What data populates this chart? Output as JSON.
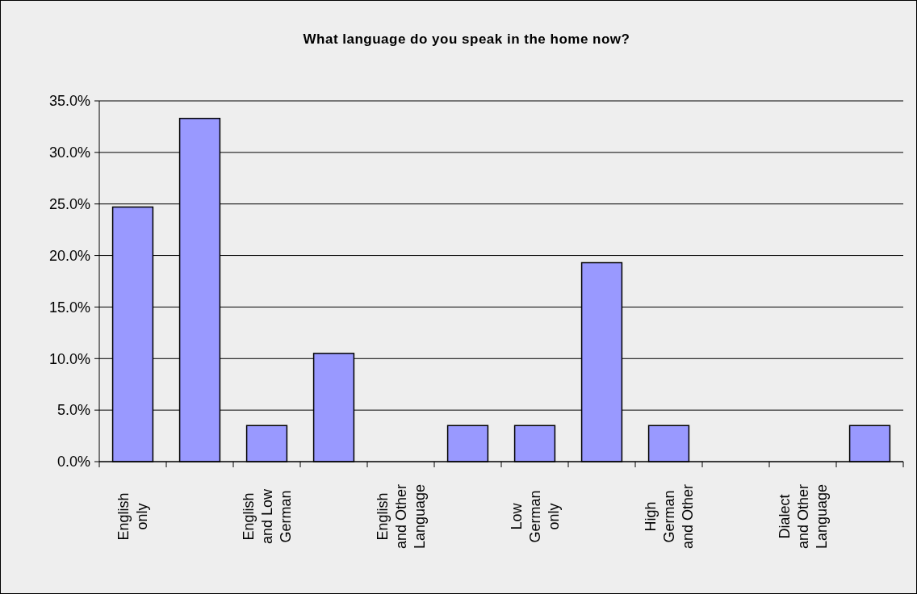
{
  "chart_data": {
    "type": "bar",
    "title": "What language do you speak in the home now?",
    "categories": [
      "English only",
      null,
      "English and Low German",
      null,
      "English and Other Language",
      null,
      "Low German only",
      null,
      "High German and Other",
      null,
      "Dialect and Other Language",
      null
    ],
    "values": [
      24.7,
      33.3,
      3.5,
      10.5,
      0,
      3.5,
      3.5,
      19.3,
      3.5,
      0,
      0,
      3.5
    ],
    "color": "#9999ff",
    "ylim": [
      0,
      35
    ],
    "yticks": [
      {
        "value": 0,
        "label": "0.0%"
      },
      {
        "value": 5,
        "label": "5.0%"
      },
      {
        "value": 10,
        "label": "10.0%"
      },
      {
        "value": 15,
        "label": "15.0%"
      },
      {
        "value": 20,
        "label": "20.0%"
      },
      {
        "value": 25,
        "label": "25.0%"
      },
      {
        "value": 30,
        "label": "30.0%"
      },
      {
        "value": 35,
        "label": "35.0%"
      }
    ],
    "grid": "y"
  }
}
